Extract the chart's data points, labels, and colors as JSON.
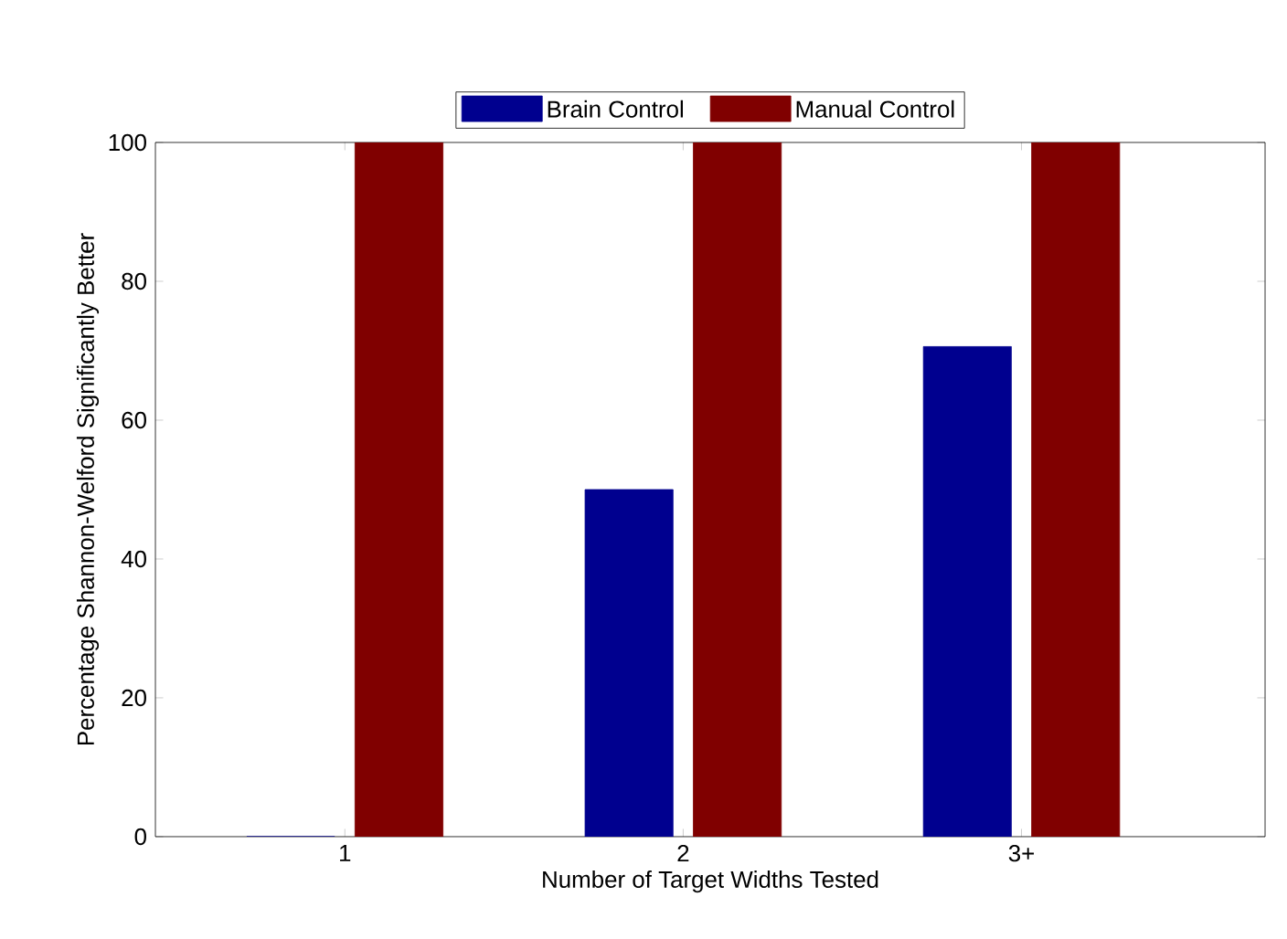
{
  "chart_data": {
    "type": "bar",
    "xlabel": "Number of Target Widths Tested",
    "ylabel": "Percentage Shannon-Welford Significantly Better",
    "categories": [
      "1",
      "2",
      "3+"
    ],
    "series": [
      {
        "name": "Brain Control",
        "color": "#00008f",
        "values": [
          0,
          50,
          70.6
        ]
      },
      {
        "name": "Manual Control",
        "color": "#800000",
        "values": [
          100,
          100,
          100
        ]
      }
    ],
    "ylim": [
      0,
      100
    ],
    "yticks": [
      0,
      20,
      40,
      60,
      80,
      100
    ],
    "legend": "top"
  }
}
